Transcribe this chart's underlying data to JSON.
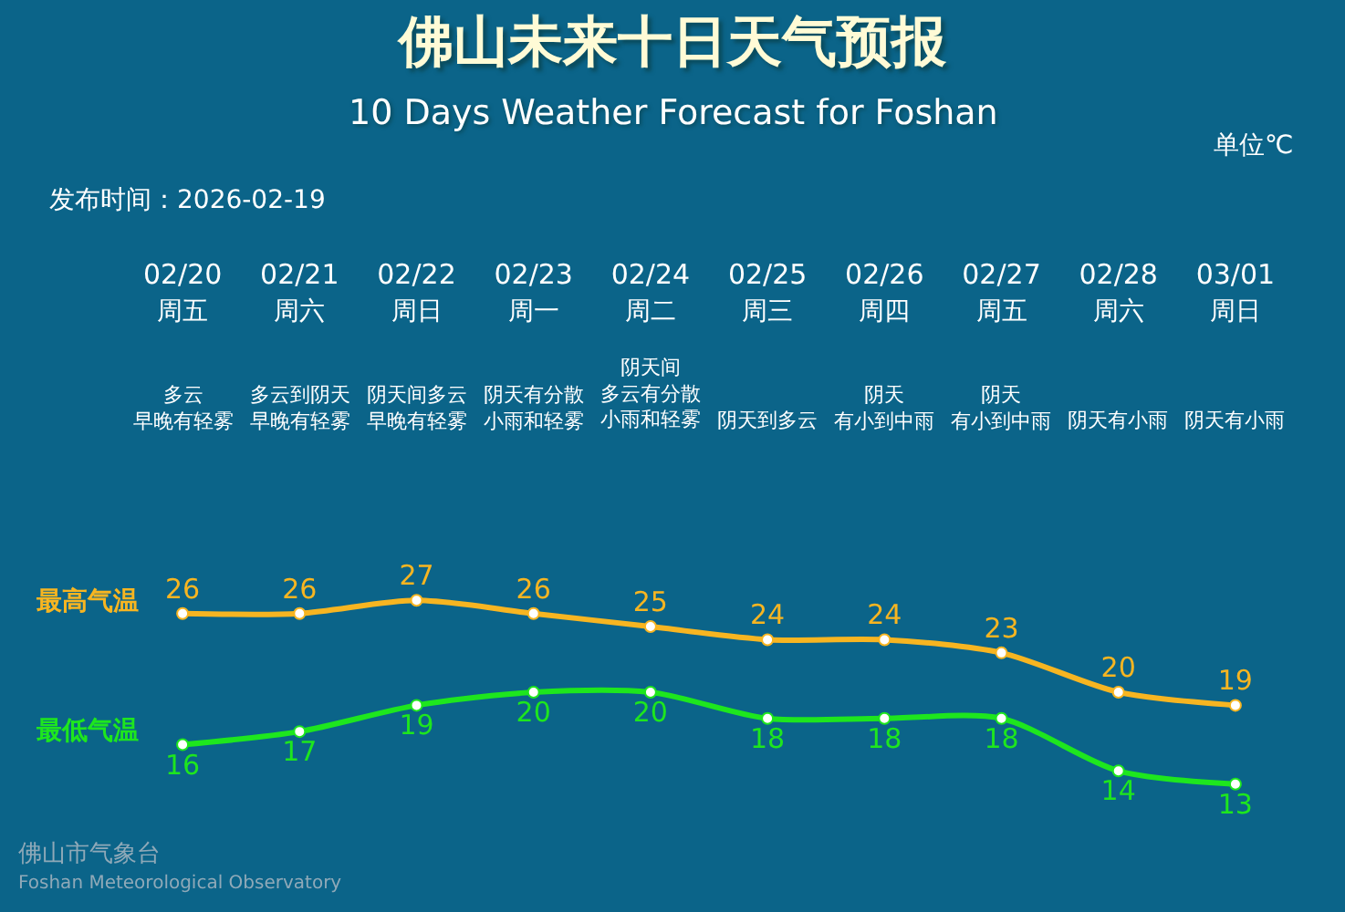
{
  "chart_data": {
    "type": "line",
    "title": "佛山未来十日天气预报",
    "subtitle": "10 Days Weather Forecast for Foshan",
    "categories": [
      "02/20\n周五",
      "02/21\n周六",
      "02/22\n周日",
      "02/23\n周一",
      "02/24\n周二",
      "02/25\n周三",
      "02/26\n周四",
      "02/27\n周五",
      "02/28\n周六",
      "03/01\n周日"
    ],
    "series": [
      {
        "name": "最高气温",
        "color": "#f7b521",
        "values": [
          26,
          26,
          27,
          26,
          25,
          24,
          24,
          23,
          20,
          19
        ]
      },
      {
        "name": "最低气温",
        "color": "#1ee61e",
        "values": [
          16,
          17,
          19,
          20,
          20,
          18,
          18,
          18,
          14,
          13
        ]
      }
    ],
    "annotations": [
      "单位℃",
      "发布时间：2026-02-19",
      "多云早晚有轻雾",
      "多云到阴天早晚有轻雾",
      "阴天间多云早晚有轻雾",
      "阴天有分散小雨和轻雾",
      "阴天间多云有分散小雨和轻雾",
      "阴天到多云",
      "阴天有小到中雨",
      "阴天有小到中雨",
      "阴天有小雨",
      "阴天有小雨",
      "佛山市气象台",
      "Foshan Meteorological Observatory"
    ],
    "data_labels": true,
    "marker": "circle",
    "line_style": "solid"
  }
}
